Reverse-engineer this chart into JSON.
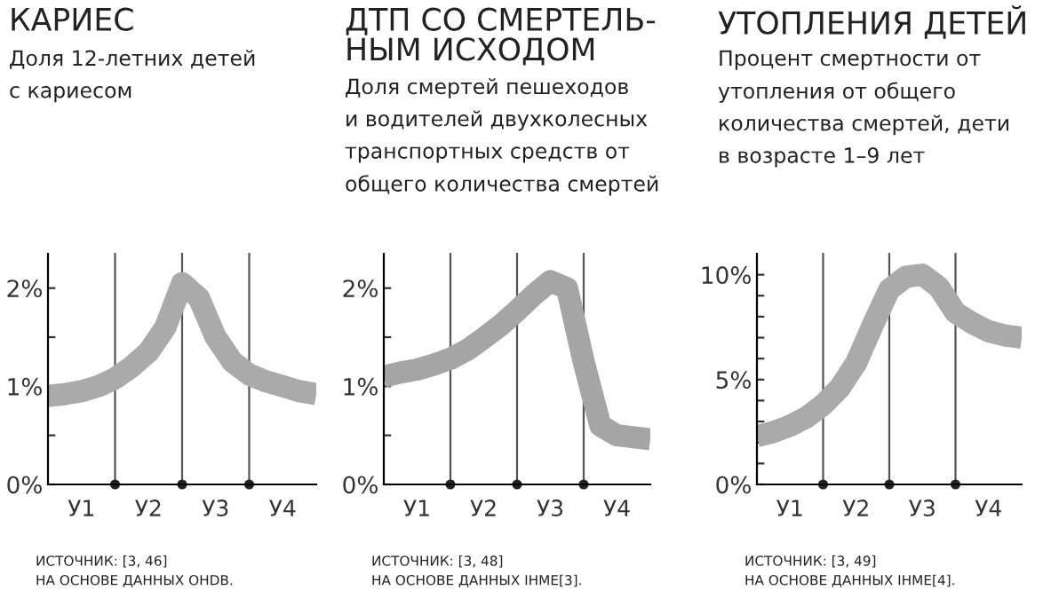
{
  "chart_data": [
    {
      "type": "line",
      "title": "КАРИЕС",
      "subtitle": "Доля 12-летних детей\nс кариесом",
      "categories": [
        null,
        null,
        "У1",
        null,
        null,
        null,
        "У2",
        null,
        null,
        null,
        "У3",
        null,
        null,
        null,
        "У4",
        null,
        null
      ],
      "series": [
        {
          "color": "#aaaaaa",
          "values": [
            0.9,
            0.92,
            0.95,
            1.0,
            1.08,
            1.2,
            1.35,
            1.6,
            2.05,
            1.9,
            1.5,
            1.25,
            1.12,
            1.05,
            1.0,
            0.95,
            0.92
          ]
        }
      ],
      "ylim": [
        0,
        2.35
      ],
      "yticks": [
        {
          "value": 0,
          "label": "0%"
        },
        {
          "value": 0.5,
          "label": null
        },
        {
          "value": 1,
          "label": "1%"
        },
        {
          "value": 1.5,
          "label": null
        },
        {
          "value": 2,
          "label": "2%"
        }
      ],
      "annotations": [
        "ИСТОЧНИК: [3, 46]\nНА ОСНОВЕ ДАННЫХ OHDB."
      ],
      "grid": "x",
      "marker": "none",
      "line_style": "solid"
    },
    {
      "type": "line",
      "title": "ДТП СО СМЕРТЕЛЬ-\nНЫМ ИСХОДОМ",
      "subtitle": "Доля смертей пешеходов\nи водителей двухколесных\nтранспортных средств от\nобщего количества смертей",
      "categories": [
        null,
        null,
        "У1",
        null,
        null,
        null,
        "У2",
        null,
        null,
        null,
        "У3",
        null,
        null,
        null,
        "У4",
        null,
        null
      ],
      "series": [
        {
          "color": "#a5a5a5",
          "values": [
            1.1,
            1.14,
            1.17,
            1.22,
            1.28,
            1.37,
            1.49,
            1.62,
            1.77,
            1.93,
            2.07,
            2.0,
            1.25,
            0.6,
            0.5,
            0.48,
            0.46
          ]
        }
      ],
      "ylim": [
        0,
        2.35
      ],
      "yticks": [
        {
          "value": 0,
          "label": "0%"
        },
        {
          "value": 0.5,
          "label": null
        },
        {
          "value": 1,
          "label": "1%"
        },
        {
          "value": 1.5,
          "label": null
        },
        {
          "value": 2,
          "label": "2%"
        }
      ],
      "annotations": [
        "ИСТОЧНИК: [3, 48]\nНА ОСНОВЕ ДАННЫХ IHME[3]."
      ],
      "grid": "x",
      "marker": "none",
      "line_style": "solid"
    },
    {
      "type": "line",
      "title": "УТОПЛЕНИЯ ДЕТЕЙ",
      "subtitle": "Процент смертности от\nутопления от общего\nколичества смертей, дети\nв возрасте 1–9 лет",
      "categories": [
        null,
        null,
        "У1",
        null,
        null,
        null,
        "У2",
        null,
        null,
        null,
        "У3",
        null,
        null,
        null,
        "У4",
        null,
        null
      ],
      "series": [
        {
          "color": "#aaaaaa",
          "values": [
            2.3,
            2.5,
            2.8,
            3.2,
            3.8,
            4.6,
            5.8,
            7.6,
            9.3,
            9.9,
            10.0,
            9.4,
            8.2,
            7.7,
            7.3,
            7.1,
            7.0
          ]
        }
      ],
      "ylim": [
        0,
        11
      ],
      "yticks": [
        {
          "value": 0,
          "label": "0%"
        },
        {
          "value": 1,
          "label": null
        },
        {
          "value": 2,
          "label": null
        },
        {
          "value": 3,
          "label": null
        },
        {
          "value": 4,
          "label": null
        },
        {
          "value": 5,
          "label": "5%"
        },
        {
          "value": 6,
          "label": null
        },
        {
          "value": 7,
          "label": null
        },
        {
          "value": 8,
          "label": null
        },
        {
          "value": 9,
          "label": null
        },
        {
          "value": 10,
          "label": "10%"
        }
      ],
      "annotations": [
        "ИСТОЧНИК: [3, 49]\nНА ОСНОВЕ ДАННЫХ IHME[4]."
      ],
      "grid": "x",
      "marker": "none",
      "line_style": "solid"
    }
  ]
}
